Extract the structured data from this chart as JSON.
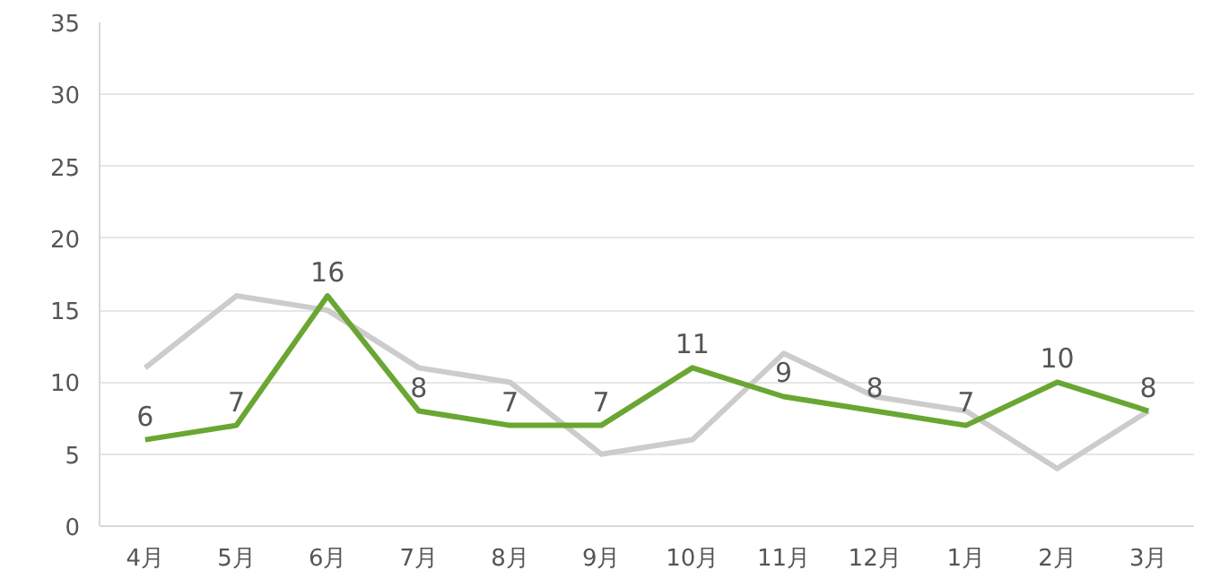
{
  "chart_data": {
    "type": "line",
    "categories": [
      "4月",
      "5月",
      "6月",
      "7月",
      "8月",
      "9月",
      "10月",
      "11月",
      "12月",
      "1月",
      "2月",
      "3月"
    ],
    "series": [
      {
        "color": "#cccccc",
        "values": [
          11,
          16,
          15,
          11,
          10,
          5,
          6,
          12,
          9,
          8,
          4,
          8
        ]
      },
      {
        "color": "#6aa632",
        "values": [
          6,
          7,
          16,
          8,
          7,
          7,
          11,
          9,
          8,
          7,
          10,
          8
        ],
        "value_labels": [
          "6",
          "7",
          "16",
          "8",
          "7",
          "7",
          "11",
          "9",
          "8",
          "7",
          "10",
          "8"
        ]
      }
    ],
    "ylim": [
      0,
      35
    ],
    "yticks": [
      0,
      5,
      10,
      15,
      20,
      25,
      30,
      35
    ],
    "grid": "y"
  }
}
